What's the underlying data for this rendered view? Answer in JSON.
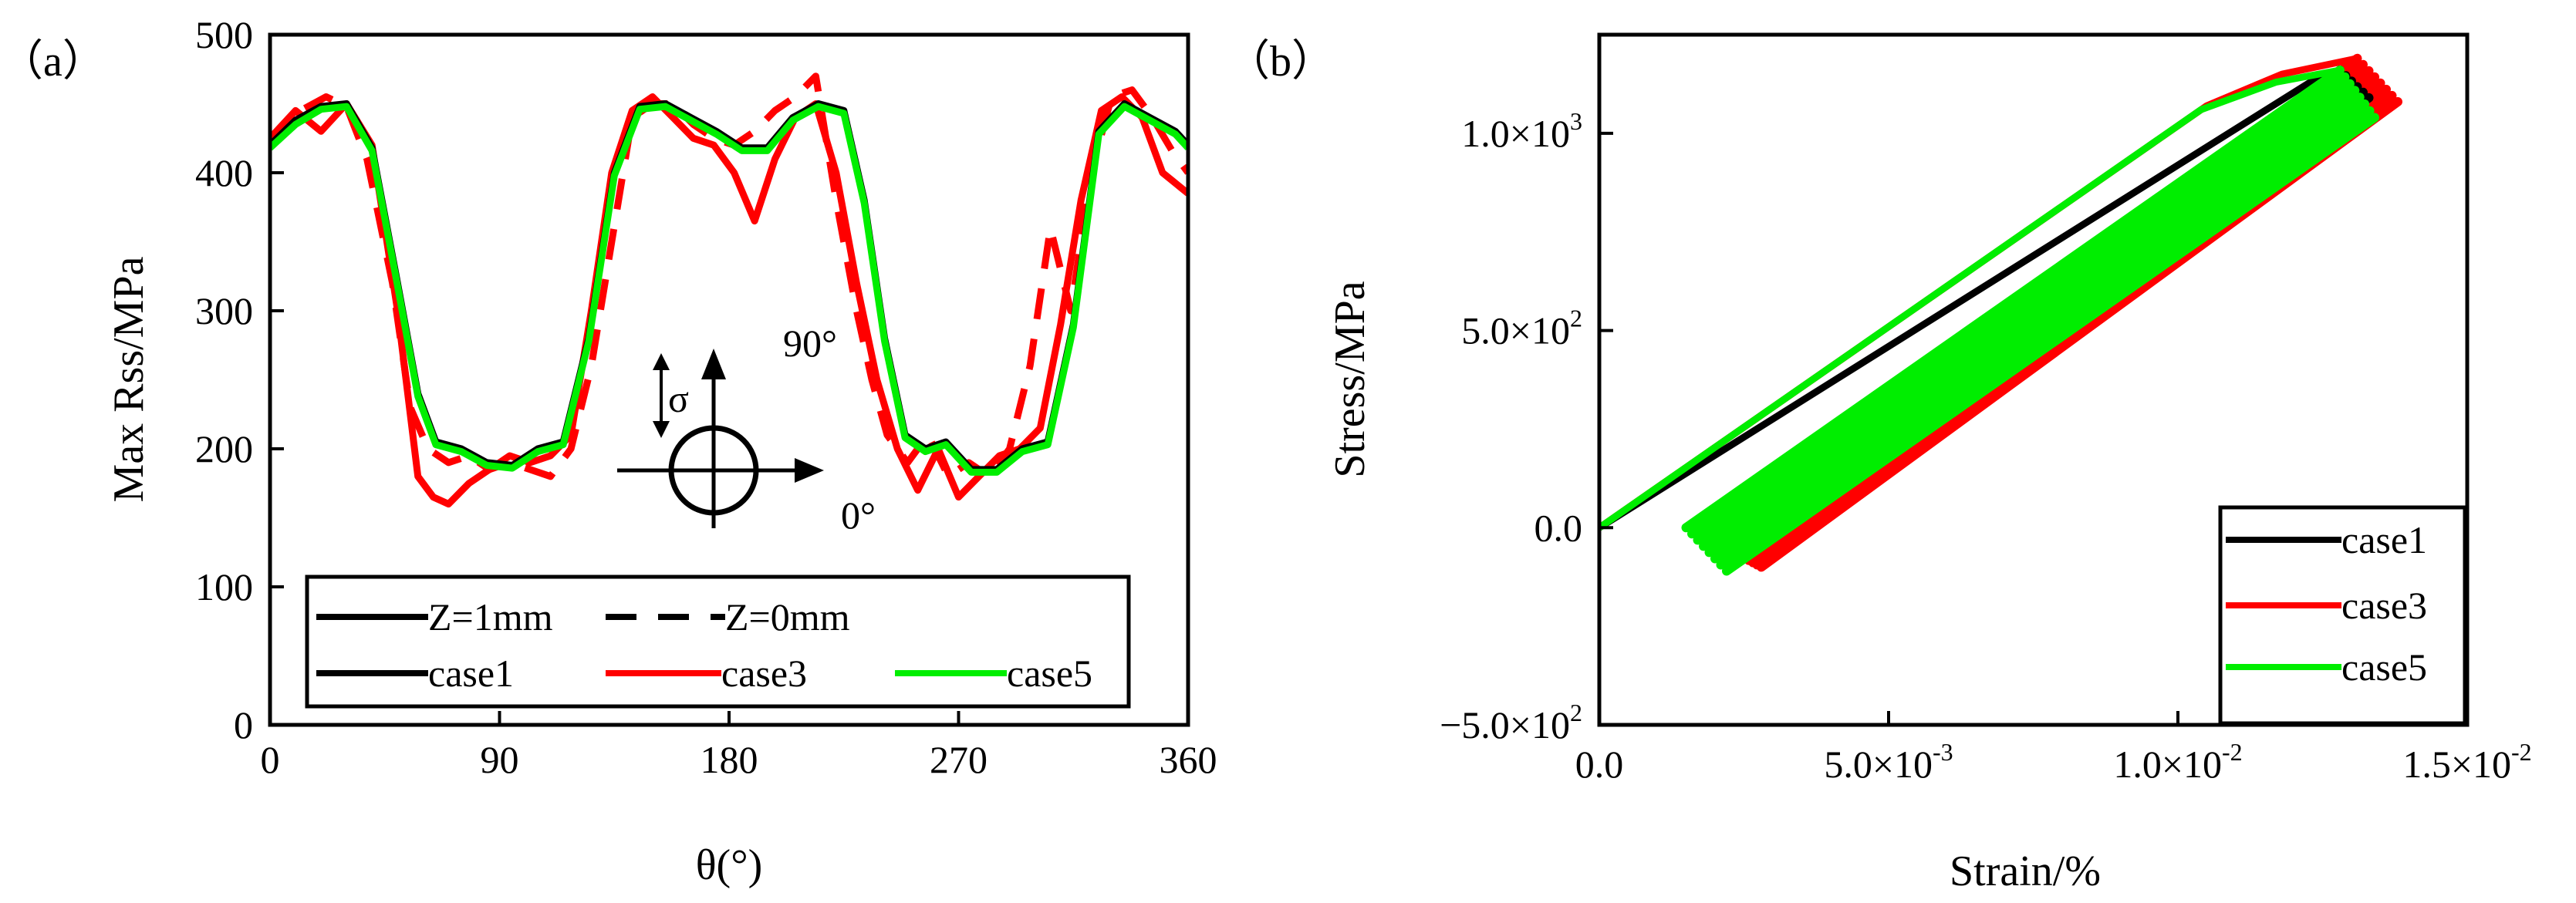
{
  "colors": {
    "black": "#000000",
    "red": "#ff0000",
    "green": "#00ee00"
  },
  "chart_data": [
    {
      "type": "line",
      "panel": "（a）",
      "xlabel": "θ(°)",
      "ylabel": "Max Rss/MPa",
      "xlim": [
        0,
        360
      ],
      "ylim": [
        0,
        500
      ],
      "xticks": [
        0,
        90,
        180,
        270,
        360
      ],
      "yticks": [
        0,
        100,
        200,
        300,
        400,
        500
      ],
      "xtick_labels": [
        "0",
        "90",
        "180",
        "270",
        "360"
      ],
      "ytick_labels": [
        "0",
        "100",
        "200",
        "300",
        "400",
        "500"
      ],
      "annotations": {
        "sigma": "σ",
        "angle_90": "90°",
        "angle_0": "0°"
      },
      "legend": {
        "placement": "bottom",
        "rows": [
          [
            {
              "label": "Z=1mm",
              "style": "solid",
              "color": "#000000"
            },
            {
              "label": "Z=0mm",
              "style": "dashed",
              "color": "#000000"
            }
          ],
          [
            {
              "label": "case1",
              "style": "solid",
              "color": "#000000"
            },
            {
              "label": "case3",
              "style": "solid",
              "color": "#ff0000"
            },
            {
              "label": "case5",
              "style": "solid",
              "color": "#00ee00"
            }
          ]
        ]
      },
      "series": [
        {
          "name": "case3 Z=0mm",
          "color": "#ff0000",
          "style": "dashed",
          "x": [
            0,
            12,
            22,
            30,
            38,
            48,
            55,
            62,
            70,
            78,
            86,
            94,
            102,
            110,
            118,
            126,
            134,
            142,
            150,
            158,
            166,
            174,
            182,
            190,
            198,
            206,
            214,
            222,
            230,
            236,
            242,
            250,
            258,
            266,
            274,
            282,
            290,
            298,
            306,
            314,
            322,
            330,
            338,
            346,
            354,
            360
          ],
          "y": [
            420,
            445,
            455,
            448,
            410,
            320,
            230,
            200,
            190,
            195,
            185,
            190,
            185,
            180,
            200,
            260,
            350,
            440,
            450,
            450,
            435,
            425,
            420,
            430,
            445,
            455,
            470,
            380,
            300,
            250,
            210,
            190,
            210,
            180,
            190,
            180,
            200,
            260,
            360,
            300,
            400,
            455,
            460,
            440,
            415,
            400
          ]
        },
        {
          "name": "case3 Z=1mm",
          "color": "#ff0000",
          "style": "solid",
          "x": [
            0,
            10,
            20,
            30,
            40,
            50,
            58,
            64,
            70,
            78,
            86,
            94,
            102,
            110,
            118,
            126,
            134,
            142,
            150,
            158,
            166,
            174,
            182,
            190,
            198,
            206,
            214,
            222,
            230,
            238,
            246,
            254,
            262,
            270,
            278,
            286,
            294,
            302,
            310,
            318,
            326,
            334,
            342,
            350,
            360
          ],
          "y": [
            425,
            445,
            430,
            450,
            420,
            300,
            180,
            165,
            160,
            175,
            185,
            195,
            190,
            195,
            210,
            300,
            400,
            445,
            455,
            440,
            425,
            420,
            400,
            365,
            410,
            440,
            450,
            400,
            320,
            250,
            200,
            170,
            200,
            165,
            180,
            195,
            200,
            215,
            290,
            380,
            445,
            455,
            440,
            400,
            385
          ]
        },
        {
          "name": "case1 Z=1mm",
          "color": "#000000",
          "style": "solid",
          "x": [
            0,
            10,
            20,
            30,
            40,
            50,
            58,
            65,
            75,
            85,
            95,
            105,
            115,
            125,
            135,
            145,
            155,
            165,
            175,
            185,
            195,
            205,
            215,
            225,
            233,
            241,
            249,
            257,
            265,
            275,
            285,
            295,
            305,
            315,
            325,
            335,
            345,
            355,
            360
          ],
          "y": [
            420,
            438,
            448,
            450,
            418,
            320,
            240,
            205,
            200,
            190,
            188,
            200,
            205,
            280,
            400,
            448,
            450,
            440,
            430,
            418,
            418,
            440,
            450,
            445,
            380,
            280,
            210,
            200,
            205,
            185,
            185,
            200,
            205,
            290,
            430,
            450,
            440,
            430,
            420
          ]
        },
        {
          "name": "case5 Z=1mm",
          "color": "#00ee00",
          "style": "solid",
          "x": [
            0,
            10,
            20,
            30,
            40,
            50,
            58,
            65,
            75,
            85,
            95,
            105,
            115,
            125,
            135,
            145,
            155,
            165,
            175,
            185,
            195,
            205,
            215,
            225,
            233,
            241,
            249,
            257,
            265,
            275,
            285,
            295,
            305,
            315,
            325,
            335,
            345,
            355,
            360
          ],
          "y": [
            418,
            435,
            446,
            448,
            416,
            318,
            238,
            203,
            198,
            188,
            186,
            198,
            203,
            278,
            398,
            446,
            448,
            438,
            428,
            416,
            416,
            438,
            448,
            443,
            378,
            278,
            208,
            198,
            203,
            183,
            183,
            198,
            203,
            288,
            428,
            448,
            438,
            428,
            418
          ]
        }
      ]
    },
    {
      "type": "line",
      "panel": "（b）",
      "xlabel": "Strain/%",
      "ylabel": "Stress/MPa",
      "xlim": [
        0,
        0.015
      ],
      "ylim": [
        -500,
        1250
      ],
      "xticks": [
        0,
        0.005,
        0.01,
        0.015
      ],
      "yticks": [
        -500,
        0,
        500,
        1000
      ],
      "xtick_labels": [
        {
          "mant": "0.0",
          "exp": ""
        },
        {
          "mant": "5.0×10",
          "exp": "-3"
        },
        {
          "mant": "1.0×10",
          "exp": "-2"
        },
        {
          "mant": "1.5×10",
          "exp": "-2"
        }
      ],
      "ytick_labels": [
        {
          "mant": "−5.0×10",
          "exp": "2"
        },
        {
          "mant": "0.0",
          "exp": ""
        },
        {
          "mant": "5.0×10",
          "exp": "2"
        },
        {
          "mant": "1.0×10",
          "exp": "3"
        }
      ],
      "legend": {
        "placement": "bottom-right",
        "entries": [
          {
            "label": "case1",
            "color": "#000000"
          },
          {
            "label": "case3",
            "color": "#ff0000"
          },
          {
            "label": "case5",
            "color": "#00ee00"
          }
        ]
      },
      "series": [
        {
          "name": "case3",
          "color": "#ff0000",
          "loading": {
            "x": [
              0,
              0.0105,
              0.0118,
              0.0131
            ],
            "y": [
              0,
              1070,
              1150,
              1190
            ]
          },
          "cycles": {
            "upper": [
              0.0131,
              1190
            ],
            "lower_start": [
              0.0023,
              -60
            ],
            "lower_end": [
              0.0028,
              -100
            ],
            "upper_end": [
              0.0138,
              1080
            ],
            "count": 8
          }
        },
        {
          "name": "case1",
          "color": "#000000",
          "loading": {
            "x": [
              0,
              0.0124,
              0.0128
            ],
            "y": [
              0,
              1140,
              1160
            ]
          },
          "cycles": {
            "upper": [
              0.0128,
              1160
            ],
            "lower_start": [
              0.0018,
              -10
            ],
            "lower_end": [
              0.0022,
              -50
            ],
            "upper_end": [
              0.0133,
              1090
            ],
            "count": 6
          }
        },
        {
          "name": "case5",
          "color": "#00ee00",
          "loading": {
            "x": [
              0,
              0.0104,
              0.0117,
              0.0128
            ],
            "y": [
              0,
              1060,
              1130,
              1160
            ]
          },
          "cycles": {
            "upper": [
              0.0128,
              1160
            ],
            "lower_start": [
              0.0015,
              0
            ],
            "lower_end": [
              0.0022,
              -110
            ],
            "upper_end": [
              0.0134,
              1040
            ],
            "count": 8
          }
        }
      ]
    }
  ]
}
